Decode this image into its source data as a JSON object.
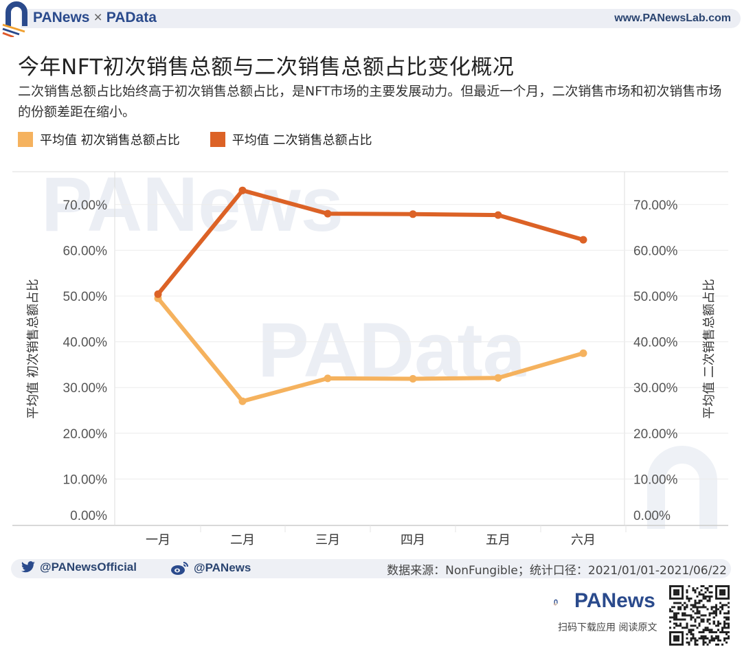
{
  "header": {
    "brand_left": "PANews",
    "brand_sep": "×",
    "brand_right": "PAData",
    "site_url": "www.PANewsLab.com"
  },
  "title": "今年NFT初次销售总额与二次销售总额占比变化概况",
  "subtitle": "二次销售总额占比始终高于初次销售总额占比，是NFT市场的主要发展动力。但最近一个月，二次销售市场和初次销售市场的份额差距在缩小。",
  "legend": [
    {
      "label": "平均值 初次销售总额占比",
      "color": "#f5b25e"
    },
    {
      "label": "平均值 二次销售总额占比",
      "color": "#dc6226"
    }
  ],
  "watermarks": [
    "PANews",
    "PAData"
  ],
  "chart_data": {
    "type": "line",
    "title": "今年NFT初次销售总额与二次销售总额占比变化概况",
    "categories": [
      "一月",
      "二月",
      "三月",
      "四月",
      "五月",
      "六月"
    ],
    "series": [
      {
        "name": "平均值 初次销售总额占比",
        "axis": "left",
        "color": "#f5b25e",
        "values": [
          49.5,
          27.0,
          32.0,
          31.9,
          32.1,
          37.5
        ]
      },
      {
        "name": "平均值 二次销售总额占比",
        "axis": "right",
        "color": "#dc6226",
        "values": [
          50.4,
          73.1,
          68.0,
          67.9,
          67.7,
          62.3
        ]
      }
    ],
    "xlabel": "",
    "ylabel_left": "平均值 初次销售总额占比",
    "ylabel_right": "平均值 二次销售总额占比",
    "ylim": [
      0,
      77
    ],
    "yticks": [
      "0.00%",
      "10.00%",
      "20.00%",
      "30.00%",
      "40.00%",
      "50.00%",
      "60.00%",
      "70.00%"
    ],
    "grid": true,
    "legend_position": "top-left"
  },
  "footer": {
    "twitter": "@PANewsOfficial",
    "weibo": "@PANews",
    "source": "数据来源：NonFungible；统计口径：2021/01/01-2021/06/22",
    "bottom_brand": "PANews",
    "scan_text": "扫码下载应用  阅读原文"
  }
}
